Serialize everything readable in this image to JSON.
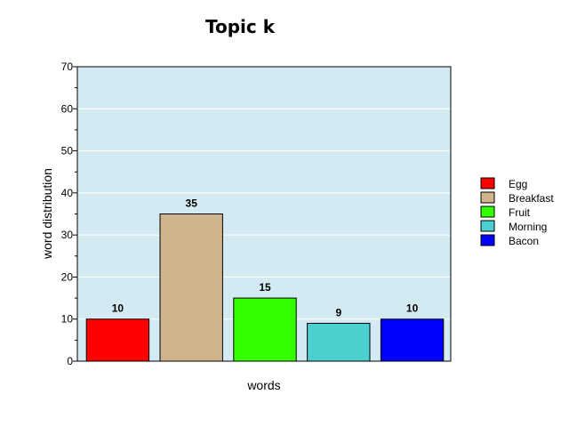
{
  "chart_data": {
    "type": "bar",
    "title": "Topic k",
    "xlabel": "words",
    "ylabel": "word distribution",
    "ylim": [
      0,
      70
    ],
    "yticks": [
      0,
      10,
      20,
      30,
      40,
      50,
      60,
      70
    ],
    "grid": true,
    "legend_position": "right",
    "plot_background": "#d3eaf2",
    "categories": [
      "Egg",
      "Breakfast",
      "Fruit",
      "Morning",
      "Bacon"
    ],
    "values": [
      10,
      35,
      15,
      9,
      10
    ],
    "colors": [
      "#ff0000",
      "#d2b48c",
      "#33ff00",
      "#4dcfcf",
      "#0000ff"
    ]
  }
}
